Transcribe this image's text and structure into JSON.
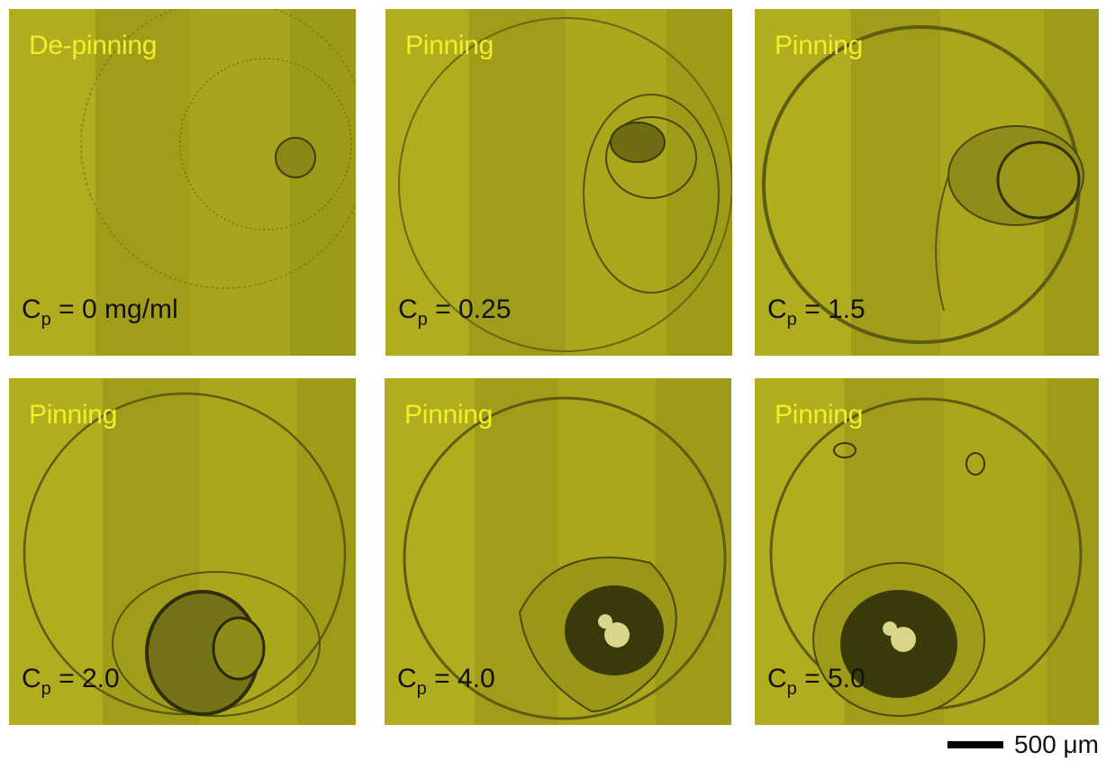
{
  "colors": {
    "background": "#a8a51c",
    "label_yellow": "#f2ee2a",
    "label_dark": "#111111"
  },
  "panels": [
    {
      "state": "De-pinning",
      "var": "C",
      "sub": "p",
      "value": "= 0 mg/ml"
    },
    {
      "state": "Pinning",
      "var": "C",
      "sub": "p",
      "value": "= 0.25"
    },
    {
      "state": "Pinning",
      "var": "C",
      "sub": "p",
      "value": "= 1.5"
    },
    {
      "state": "Pinning",
      "var": "C",
      "sub": "p",
      "value": "= 2.0"
    },
    {
      "state": "Pinning",
      "var": "C",
      "sub": "p",
      "value": "= 4.0"
    },
    {
      "state": "Pinning",
      "var": "C",
      "sub": "p",
      "value": "= 5.0"
    }
  ],
  "scale_bar": {
    "label": "500 μm"
  }
}
